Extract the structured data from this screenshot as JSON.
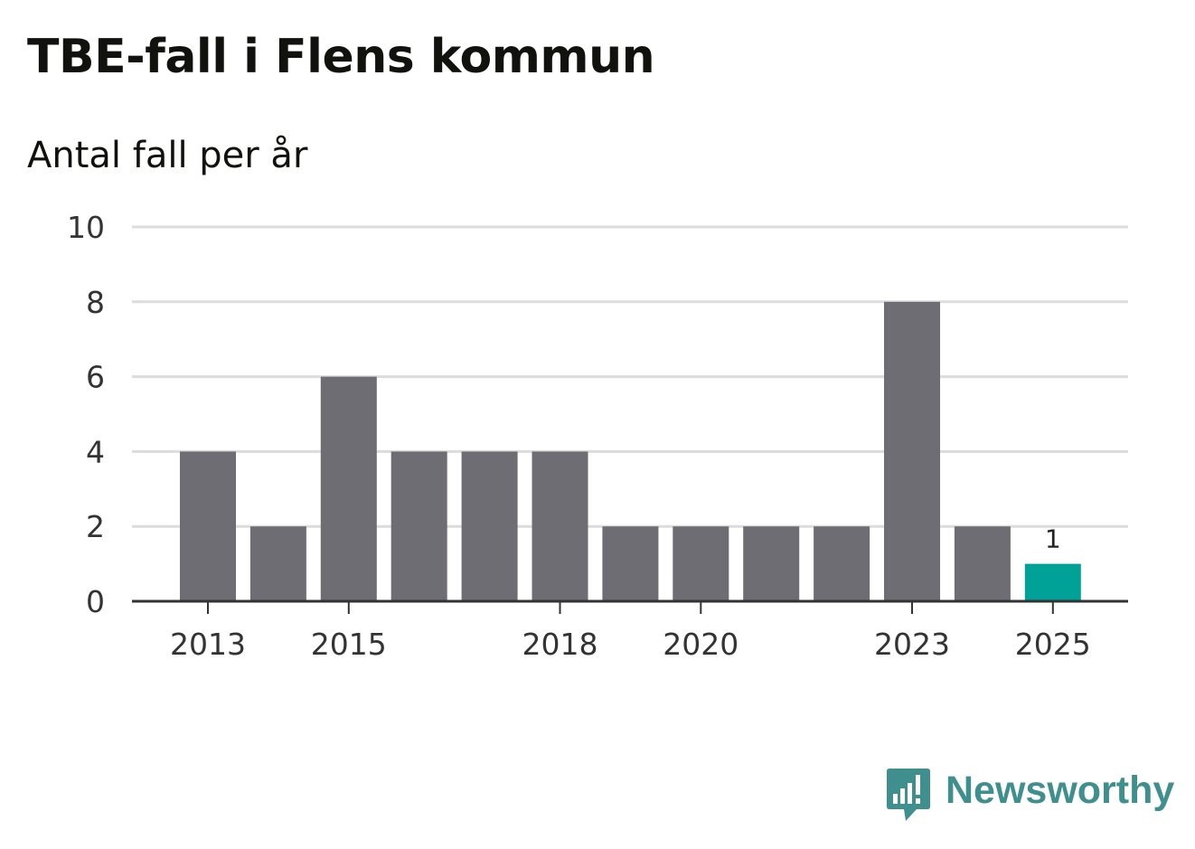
{
  "header": {
    "title": "TBE-fall i Flens kommun",
    "subtitle": "Antal fall per år"
  },
  "brand": {
    "name": "Newsworthy",
    "color": "#3f8f8f"
  },
  "colors": {
    "bar": "#6e6d73",
    "highlight": "#00a196",
    "grid": "#dcdcdc",
    "axis": "#333333"
  },
  "chart_data": {
    "type": "bar",
    "title": "TBE-fall i Flens kommun",
    "subtitle": "Antal fall per år",
    "xlabel": "",
    "ylabel": "",
    "categories": [
      2013,
      2014,
      2015,
      2016,
      2017,
      2018,
      2019,
      2020,
      2021,
      2022,
      2023,
      2024,
      2025
    ],
    "values": [
      4,
      2,
      6,
      4,
      4,
      4,
      2,
      2,
      2,
      2,
      8,
      2,
      1
    ],
    "highlight_index": 12,
    "data_labels": [
      {
        "index": 12,
        "text": "1"
      }
    ],
    "ylim": [
      0,
      10
    ],
    "yticks": [
      0,
      2,
      4,
      6,
      8,
      10
    ],
    "xticks": [
      2013,
      2015,
      2018,
      2020,
      2023,
      2025
    ],
    "grid": true,
    "legend": "none"
  }
}
